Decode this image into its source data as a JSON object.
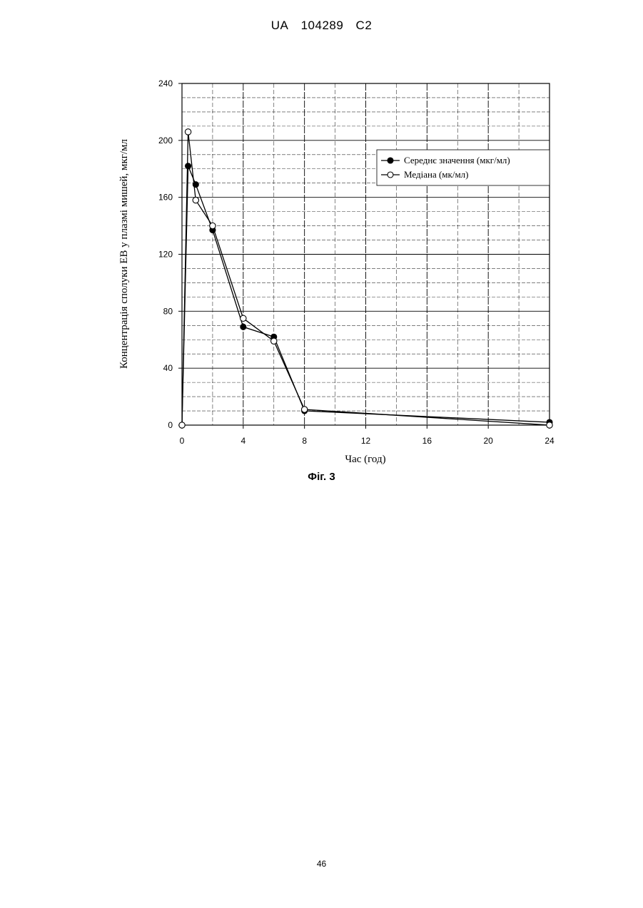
{
  "header": {
    "country": "UA",
    "number": "104289",
    "kind": "C2"
  },
  "figure_caption": "Фіг. 3",
  "page_number": "46",
  "colors": {
    "line": "#000000",
    "filled_marker": "#000000",
    "open_marker": "#ffffff",
    "grid": "#000000"
  },
  "chart_data": {
    "type": "line",
    "xlabel": "Час (год)",
    "ylabel": "Концентрація сполуки ЕВ у плазмі мишей,  мкг/мл",
    "xlim": [
      0,
      24
    ],
    "ylim": [
      0,
      240
    ],
    "x_ticks": [
      0,
      4,
      8,
      12,
      16,
      20,
      24
    ],
    "y_ticks": [
      0,
      40,
      80,
      120,
      160,
      200,
      240
    ],
    "x_tick_labels": [
      "0",
      "4",
      "8",
      "12",
      "16",
      "20",
      "24"
    ],
    "y_tick_labels": [
      "0",
      "40",
      "80",
      "120",
      "160",
      "200",
      "240"
    ],
    "grid": true,
    "legend_position": "top-right",
    "series": [
      {
        "name": "Середнє значення (мкг/мл)",
        "marker": "filled-circle",
        "x": [
          0,
          0.4,
          0.9,
          2,
          4,
          6,
          8,
          24
        ],
        "y": [
          0,
          182,
          169,
          137,
          69,
          62,
          10,
          2
        ]
      },
      {
        "name": "Медіана (мк/мл)",
        "marker": "open-circle",
        "x": [
          0,
          0.4,
          0.9,
          2,
          4,
          6,
          8,
          24
        ],
        "y": [
          0,
          206,
          158,
          140,
          75,
          59,
          11,
          0
        ]
      }
    ]
  }
}
